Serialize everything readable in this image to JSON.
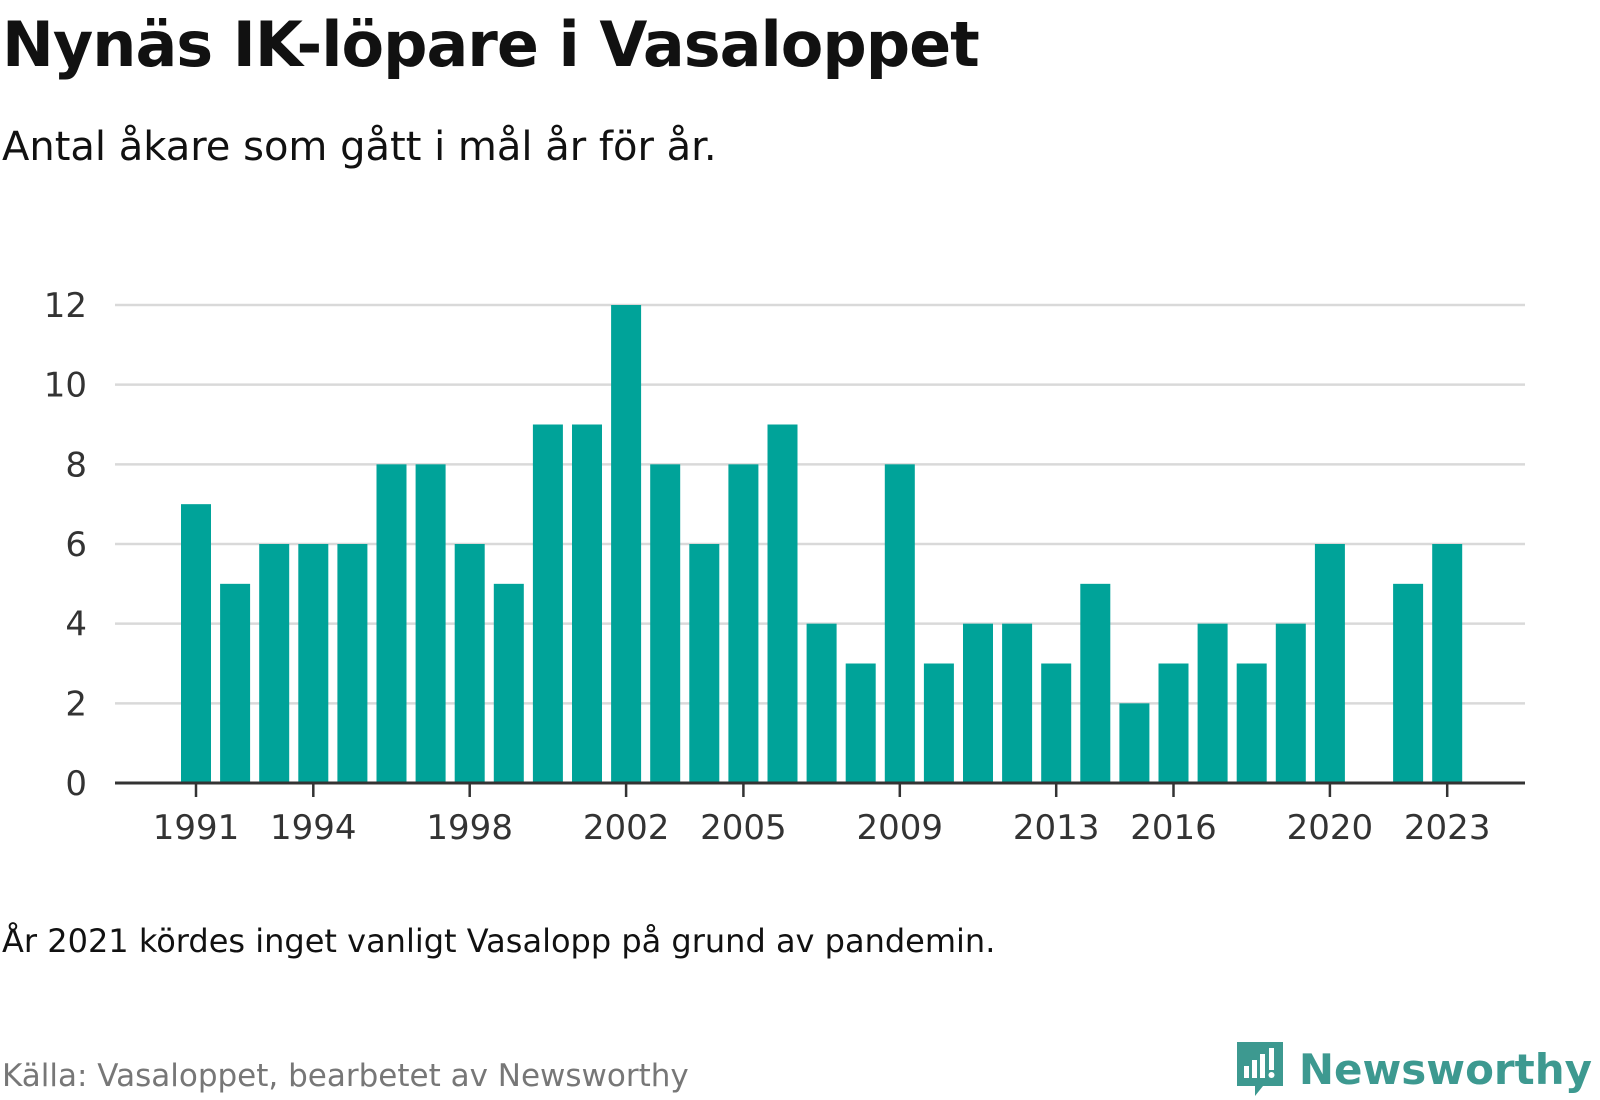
{
  "title": "Nynäs IK-löpare i Vasaloppet",
  "subtitle": "Antal åkare som gått i mål år för år.",
  "note": "År 2021 kördes inget vanligt Vasalopp på grund av pandemin.",
  "source": "Källa: Vasaloppet, bearbetet av Newsworthy",
  "brand": {
    "name": "Newsworthy",
    "logo_icon": "newsworthy-logo-icon",
    "color": "#3d9990"
  },
  "colors": {
    "bar": "#00a399",
    "grid": "#d9d9d9",
    "axis": "#333333"
  },
  "chart_data": {
    "type": "bar",
    "title": "Nynäs IK-löpare i Vasaloppet",
    "subtitle": "Antal åkare som gått i mål år för år.",
    "xlabel": "",
    "ylabel": "",
    "ylim": [
      0,
      12
    ],
    "yticks": [
      0,
      2,
      4,
      6,
      8,
      10,
      12
    ],
    "grid": true,
    "legend": "none",
    "categories": [
      1991,
      1992,
      1993,
      1994,
      1995,
      1996,
      1997,
      1998,
      1999,
      2000,
      2001,
      2002,
      2003,
      2004,
      2005,
      2006,
      2007,
      2008,
      2009,
      2010,
      2011,
      2012,
      2013,
      2014,
      2015,
      2016,
      2017,
      2018,
      2019,
      2020,
      2021,
      2022,
      2023
    ],
    "values": [
      7,
      5,
      6,
      6,
      6,
      8,
      8,
      6,
      5,
      9,
      9,
      12,
      8,
      6,
      8,
      9,
      4,
      3,
      8,
      3,
      4,
      4,
      3,
      5,
      2,
      3,
      4,
      3,
      4,
      6,
      null,
      5,
      6
    ],
    "xtick_labels": [
      "1991",
      "1994",
      "1998",
      "2002",
      "2005",
      "2009",
      "2013",
      "2016",
      "2020",
      "2023"
    ]
  }
}
